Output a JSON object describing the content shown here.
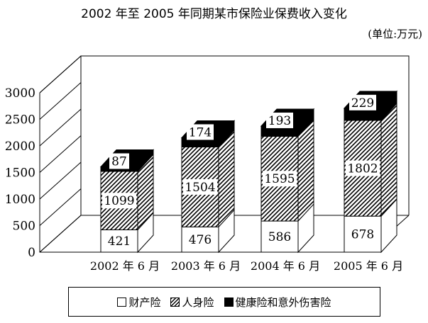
{
  "chart_data": {
    "type": "bar",
    "stacked": true,
    "three_d": true,
    "title": "2002 年至 2005 年同期某市保险业保费收入变化",
    "unit": "(单位:万元)",
    "categories": [
      "2002 年 6 月",
      "2003 年 6 月",
      "2004 年 6 月",
      "2005 年 6 月"
    ],
    "series": [
      {
        "name": "财产险",
        "values": [
          421,
          476,
          586,
          678
        ],
        "fill": "white"
      },
      {
        "name": "人身险",
        "values": [
          1099,
          1504,
          1595,
          1802
        ],
        "fill": "hatch"
      },
      {
        "name": "健康险和意外伤害险",
        "values": [
          87,
          174,
          193,
          229
        ],
        "fill": "black"
      }
    ],
    "y_ticks": [
      "0",
      "500",
      "1000",
      "1500",
      "2000",
      "2500",
      "3000"
    ],
    "ylim": [
      0,
      3000
    ],
    "legend_position": "bottom",
    "grid": false
  }
}
